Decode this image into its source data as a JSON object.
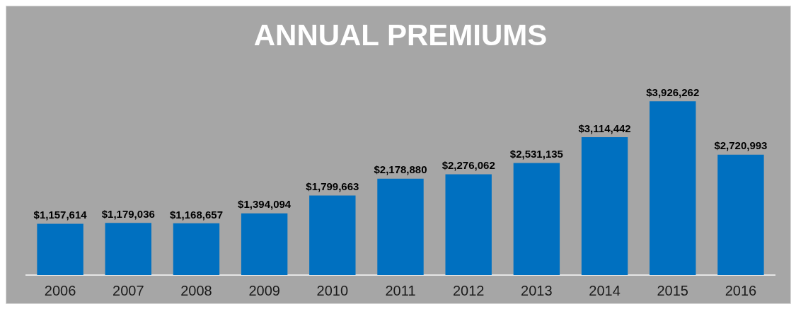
{
  "chart_data": {
    "type": "bar",
    "title": "ANNUAL PREMIUMS",
    "categories": [
      "2006",
      "2007",
      "2008",
      "2009",
      "2010",
      "2011",
      "2012",
      "2013",
      "2014",
      "2015",
      "2016"
    ],
    "values": [
      1157614,
      1179036,
      1168657,
      1394094,
      1799663,
      2178880,
      2276062,
      2531135,
      3114442,
      3926262,
      2720993
    ],
    "value_labels": [
      "$1,157,614",
      "$1,179,036",
      "$1,168,657",
      "$1,394,094",
      "$1,799,663",
      "$2,178,880",
      "$2,276,062",
      "$2,531,135",
      "$3,114,442",
      "$3,926,262",
      "$2,720,993"
    ],
    "color": "#0070c0",
    "grid": false,
    "legend": false
  }
}
